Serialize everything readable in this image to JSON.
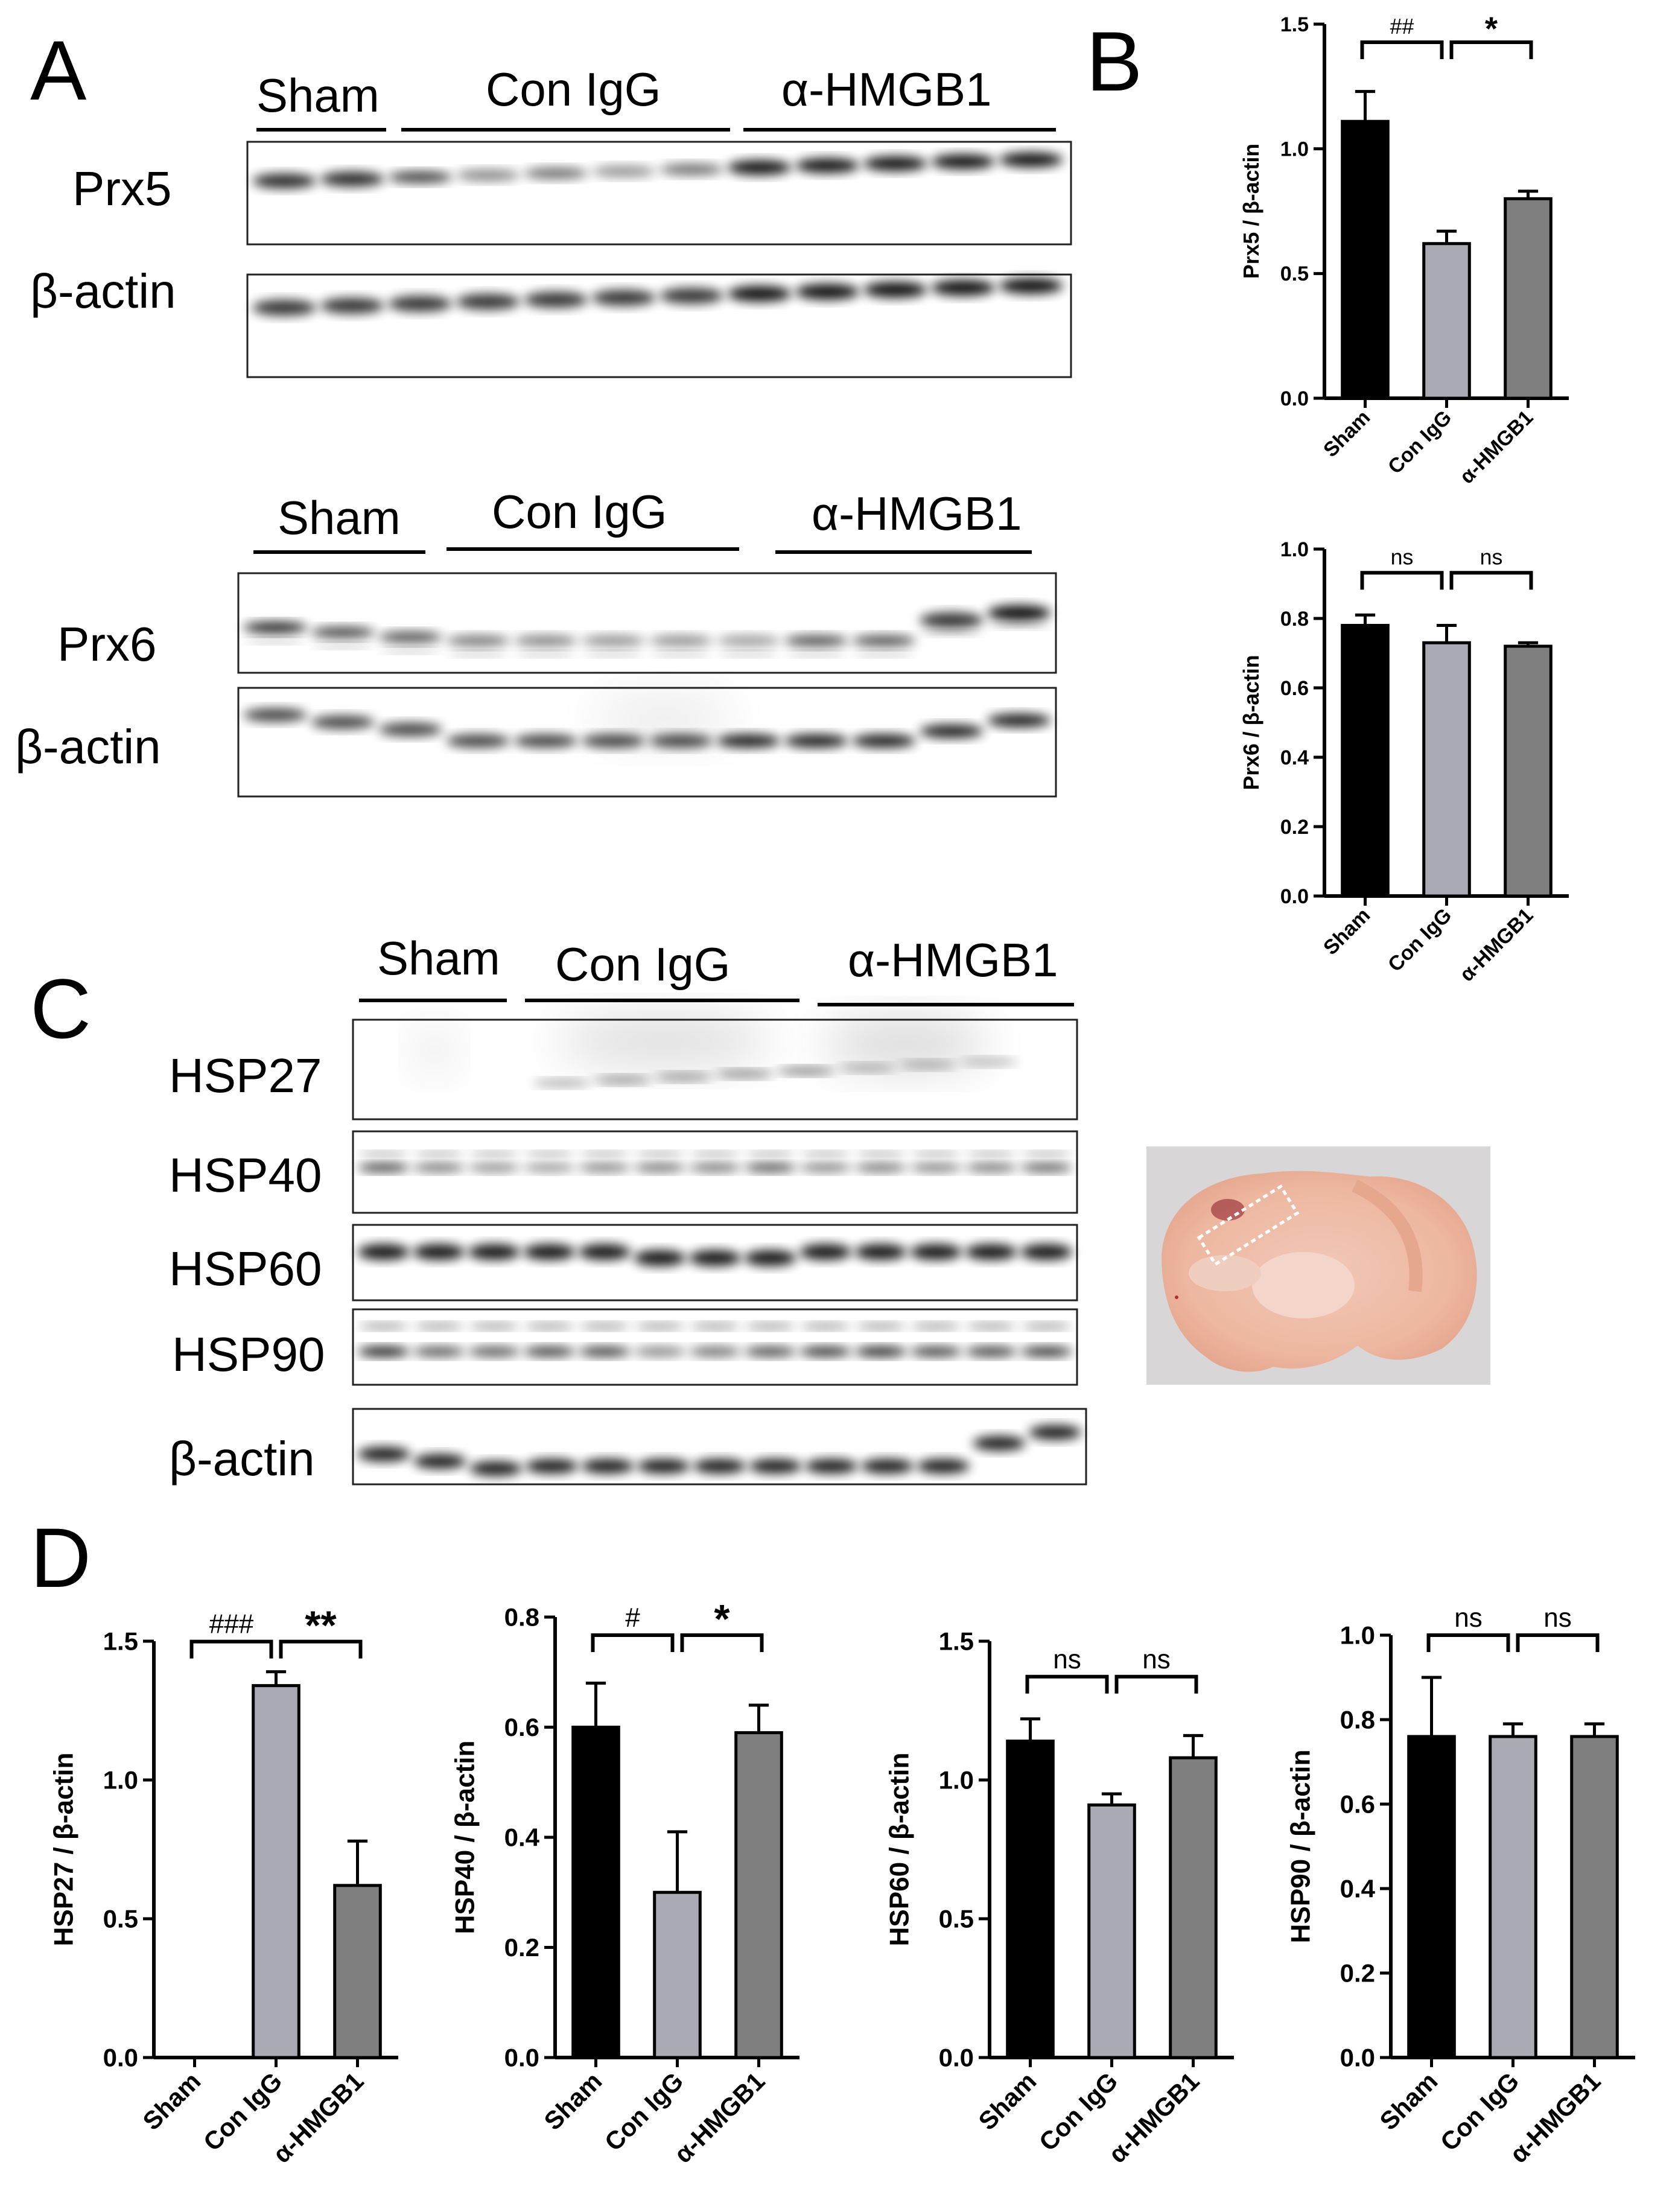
{
  "panels": {
    "A": "A",
    "B": "B",
    "C": "C",
    "D": "D"
  },
  "groups": [
    "Sham",
    "Con IgG",
    "α-HMGB1"
  ],
  "blot_a1": {
    "protein": "Prx5",
    "loading": "β-actin"
  },
  "blot_a2": {
    "protein": "Prx6",
    "loading": "β-actin"
  },
  "blot_c": {
    "proteins": [
      "HSP27",
      "HSP40",
      "HSP60",
      "HSP90"
    ],
    "loading": "β-actin"
  },
  "colors": {
    "sham": "#000000",
    "con_igg": "#a9aab3",
    "hmgb1": "#7f7f7f"
  },
  "chart_data": [
    {
      "id": "prx5",
      "type": "bar",
      "ylabel": "Prx5 / β-actin",
      "categories": [
        "Sham",
        "Con IgG",
        "α-HMGB1"
      ],
      "values": [
        1.11,
        0.62,
        0.8
      ],
      "errors": [
        0.12,
        0.05,
        0.03
      ],
      "ylim": [
        0,
        1.5
      ],
      "yticks": [
        "0.0",
        "0.5",
        "1.0",
        "1.5"
      ],
      "significance": [
        "##",
        "*"
      ]
    },
    {
      "id": "prx6",
      "type": "bar",
      "ylabel": "Prx6 / β-actin",
      "categories": [
        "Sham",
        "Con IgG",
        "α-HMGB1"
      ],
      "values": [
        0.78,
        0.73,
        0.72
      ],
      "errors": [
        0.03,
        0.05,
        0.01
      ],
      "ylim": [
        0,
        1.0
      ],
      "yticks": [
        "0.0",
        "0.2",
        "0.4",
        "0.6",
        "0.8",
        "1.0"
      ],
      "significance": [
        "ns",
        "ns"
      ]
    },
    {
      "id": "hsp27",
      "type": "bar",
      "ylabel": "HSP27 / β-actin",
      "categories": [
        "Sham",
        "Con IgG",
        "α-HMGB1"
      ],
      "values": [
        0.0,
        1.34,
        0.62
      ],
      "errors": [
        0,
        0.05,
        0.16
      ],
      "ylim": [
        0,
        1.5
      ],
      "yticks": [
        "0.0",
        "0.5",
        "1.0",
        "1.5"
      ],
      "significance": [
        "###",
        "**"
      ]
    },
    {
      "id": "hsp40",
      "type": "bar",
      "ylabel": "HSP40 / β-actin",
      "categories": [
        "Sham",
        "Con IgG",
        "α-HMGB1"
      ],
      "values": [
        0.6,
        0.3,
        0.59
      ],
      "errors": [
        0.08,
        0.11,
        0.05
      ],
      "ylim": [
        0,
        0.8
      ],
      "yticks": [
        "0.0",
        "0.2",
        "0.4",
        "0.6",
        "0.8"
      ],
      "significance": [
        "#",
        "*"
      ]
    },
    {
      "id": "hsp60",
      "type": "bar",
      "ylabel": "HSP60 / β-actin",
      "categories": [
        "Sham",
        "Con IgG",
        "α-HMGB1"
      ],
      "values": [
        1.14,
        0.91,
        1.08
      ],
      "errors": [
        0.08,
        0.04,
        0.08
      ],
      "ylim": [
        0,
        1.5
      ],
      "yticks": [
        "0.0",
        "0.5",
        "1.0",
        "1.5"
      ],
      "significance": [
        "ns",
        "ns"
      ]
    },
    {
      "id": "hsp90",
      "type": "bar",
      "ylabel": "HSP90 / β-actin",
      "categories": [
        "Sham",
        "Con IgG",
        "α-HMGB1"
      ],
      "values": [
        0.76,
        0.76,
        0.76
      ],
      "errors": [
        0.14,
        0.03,
        0.03
      ],
      "ylim": [
        0,
        1.0
      ],
      "yticks": [
        "0.0",
        "0.2",
        "0.4",
        "0.6",
        "0.8",
        "1.0"
      ],
      "significance": [
        "ns",
        "ns"
      ]
    }
  ]
}
